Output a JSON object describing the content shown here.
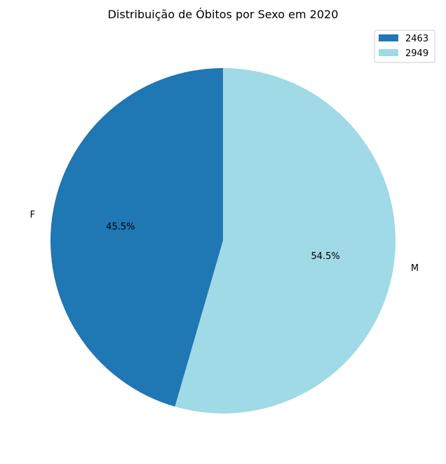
{
  "chart_data": {
    "type": "pie",
    "title": "Distribuição de Óbitos por Sexo em 2020",
    "slices": [
      {
        "label": "F",
        "value": 2463,
        "legend": "2463",
        "percent_label": "45.5%",
        "color": "#1f77b4"
      },
      {
        "label": "M",
        "value": 2949,
        "legend": "2949",
        "percent_label": "54.5%",
        "color": "#9fdae6"
      }
    ],
    "start_angle_deg": 90,
    "direction": "counterclockwise",
    "legend_position": "top-right"
  }
}
